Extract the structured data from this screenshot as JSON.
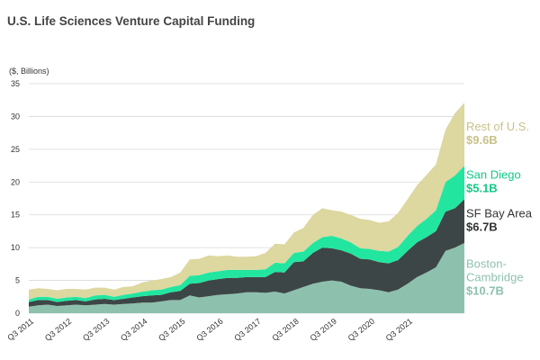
{
  "chart_data": {
    "type": "area",
    "stacked": true,
    "title": "U.S. Life Sciences Venture Capital Funding",
    "ylabel": "($, Billions)",
    "xlabel": "",
    "ylim": [
      0,
      35
    ],
    "yticks": [
      0,
      5,
      10,
      15,
      20,
      25,
      30,
      35
    ],
    "grid": true,
    "x_tick_labels": [
      "Q3 2011",
      "Q3 2012",
      "Q3 2013",
      "Q3 2014",
      "Q3 2015",
      "Q3 2016",
      "Q3 2017",
      "Q3 2018",
      "Q3 2019",
      "Q3 2020",
      "Q3 2021"
    ],
    "x_tick_index": [
      0,
      4,
      8,
      12,
      16,
      20,
      24,
      28,
      32,
      36,
      40
    ],
    "series": [
      {
        "name": "Boston-Cambridge",
        "name_lines": [
          "Boston-",
          "Cambridge"
        ],
        "label_value": "$10.7B",
        "color": "#8ec1ad",
        "label_color": "#8ec1ad",
        "values": [
          1.0,
          1.2,
          1.3,
          1.1,
          1.2,
          1.3,
          1.2,
          1.3,
          1.4,
          1.3,
          1.4,
          1.5,
          1.6,
          1.6,
          1.8,
          2.0,
          2.0,
          2.7,
          2.4,
          2.6,
          2.8,
          2.9,
          3.0,
          3.2,
          3.2,
          3.1,
          3.3,
          3.0,
          3.5,
          4.0,
          4.5,
          4.8,
          5.0,
          4.8,
          4.2,
          3.8,
          3.7,
          3.5,
          3.2,
          3.6,
          4.5,
          5.5,
          6.2,
          7.0,
          9.5,
          10.0,
          10.7
        ]
      },
      {
        "name": "SF Bay Area",
        "name_lines": [
          "SF Bay Area"
        ],
        "label_value": "$6.7B",
        "color": "#3d4646",
        "label_color": "#333333",
        "values": [
          0.7,
          0.8,
          0.7,
          0.6,
          0.7,
          0.7,
          0.6,
          0.8,
          0.8,
          0.7,
          0.8,
          0.9,
          1.0,
          1.1,
          1.0,
          1.2,
          1.4,
          1.8,
          2.2,
          2.4,
          2.4,
          2.5,
          2.4,
          2.3,
          2.3,
          2.4,
          3.0,
          3.2,
          4.3,
          3.9,
          4.7,
          5.2,
          4.9,
          4.8,
          4.9,
          4.5,
          4.5,
          4.3,
          4.4,
          4.5,
          5.0,
          5.3,
          5.4,
          5.5,
          6.0,
          6.0,
          6.7
        ]
      },
      {
        "name": "San Diego",
        "name_lines": [
          "San Diego"
        ],
        "label_value": "$5.1B",
        "color": "#22e6a0",
        "label_color": "#13c986",
        "values": [
          0.4,
          0.5,
          0.5,
          0.5,
          0.5,
          0.5,
          0.5,
          0.6,
          0.6,
          0.5,
          0.6,
          0.6,
          0.7,
          0.8,
          0.8,
          0.8,
          0.9,
          1.2,
          1.2,
          1.2,
          1.2,
          1.2,
          1.2,
          1.1,
          1.1,
          1.2,
          1.4,
          1.4,
          1.4,
          1.5,
          1.5,
          1.6,
          1.9,
          1.8,
          1.7,
          1.6,
          1.6,
          1.7,
          1.8,
          2.0,
          2.3,
          2.5,
          2.8,
          3.2,
          4.5,
          5.0,
          5.1
        ]
      },
      {
        "name": "Rest of U.S.",
        "name_lines": [
          "Rest of U.S."
        ],
        "label_value": "$9.6B",
        "color": "#ddd7a0",
        "label_color": "#c9c189",
        "values": [
          1.5,
          1.3,
          1.2,
          1.3,
          1.3,
          1.2,
          1.3,
          1.2,
          1.1,
          1.1,
          1.2,
          1.1,
          1.4,
          1.5,
          1.6,
          1.5,
          1.9,
          2.5,
          2.5,
          2.6,
          2.3,
          2.2,
          2.0,
          2.0,
          2.1,
          2.5,
          2.9,
          2.9,
          3.1,
          3.6,
          4.3,
          4.4,
          3.9,
          4.1,
          4.2,
          4.5,
          4.4,
          4.3,
          4.6,
          5.2,
          5.6,
          6.2,
          6.7,
          7.0,
          8.0,
          9.5,
          9.6
        ]
      }
    ]
  }
}
